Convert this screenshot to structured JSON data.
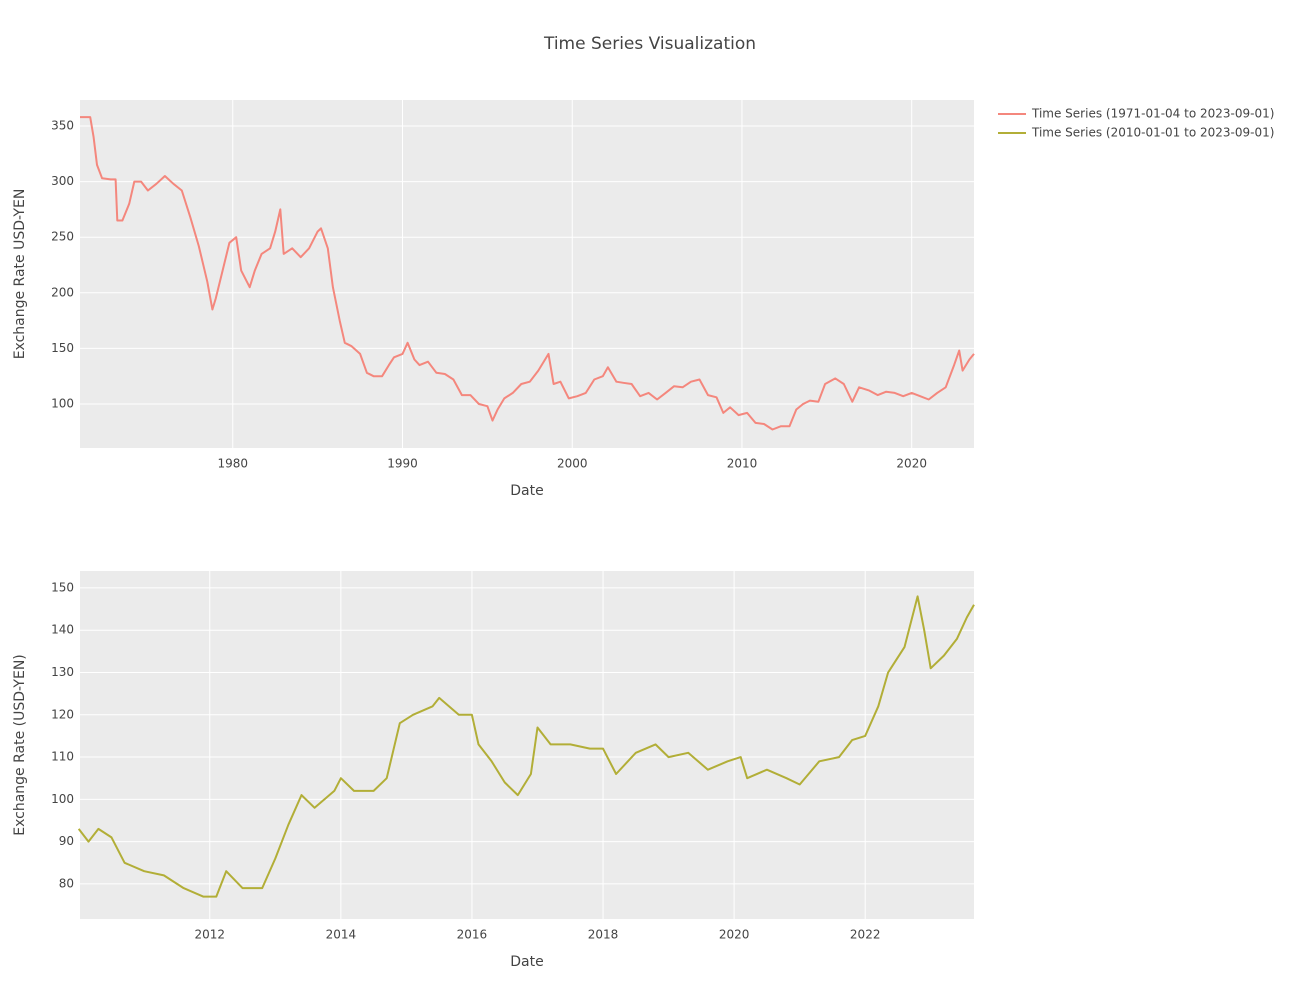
{
  "title": "Time Series Visualization",
  "chart_data": [
    {
      "type": "line",
      "xlabel": "Date",
      "ylabel": "Exchange Rate USD-YEN",
      "x": [
        1971.0,
        1971.6,
        1971.8,
        1972.0,
        1972.3,
        1972.8,
        1973.1,
        1973.2,
        1973.5,
        1973.9,
        1974.2,
        1974.6,
        1975.0,
        1975.5,
        1976.0,
        1976.5,
        1977.0,
        1977.5,
        1978.0,
        1978.5,
        1978.8,
        1979.0,
        1979.4,
        1979.8,
        1980.2,
        1980.5,
        1981.0,
        1981.3,
        1981.7,
        1982.2,
        1982.5,
        1982.8,
        1983.0,
        1983.5,
        1984.0,
        1984.5,
        1985.0,
        1985.2,
        1985.6,
        1985.9,
        1986.3,
        1986.6,
        1987.0,
        1987.5,
        1987.9,
        1988.3,
        1988.8,
        1989.2,
        1989.5,
        1990.0,
        1990.3,
        1990.7,
        1991.0,
        1991.5,
        1992.0,
        1992.5,
        1993.0,
        1993.5,
        1994.0,
        1994.5,
        1995.0,
        1995.3,
        1995.6,
        1996.0,
        1996.5,
        1997.0,
        1997.5,
        1998.0,
        1998.6,
        1998.9,
        1999.3,
        1999.8,
        2000.3,
        2000.8,
        2001.3,
        2001.8,
        2002.1,
        2002.6,
        2003.0,
        2003.5,
        2004.0,
        2004.5,
        2005.0,
        2005.5,
        2006.0,
        2006.5,
        2007.0,
        2007.5,
        2008.0,
        2008.5,
        2008.9,
        2009.3,
        2009.8,
        2010.3,
        2010.8,
        2011.3,
        2011.8,
        2012.3,
        2012.8,
        2013.2,
        2013.6,
        2014.0,
        2014.5,
        2014.9,
        2015.5,
        2016.0,
        2016.5,
        2016.9,
        2017.5,
        2018.0,
        2018.5,
        2019.0,
        2019.5,
        2020.0,
        2020.5,
        2021.0,
        2021.5,
        2022.0,
        2022.5,
        2022.8,
        2023.0,
        2023.4,
        2023.67
      ],
      "series": [
        {
          "name": "Time Series (1971-01-04 to 2023-09-01)",
          "color": "#f4877d",
          "values": [
            358,
            358,
            340,
            315,
            303,
            302,
            302,
            265,
            265,
            280,
            300,
            300,
            292,
            298,
            305,
            298,
            292,
            268,
            242,
            210,
            185,
            195,
            220,
            245,
            250,
            220,
            205,
            220,
            235,
            240,
            255,
            275,
            235,
            240,
            232,
            240,
            255,
            258,
            240,
            205,
            175,
            155,
            152,
            145,
            128,
            125,
            125,
            135,
            142,
            145,
            155,
            140,
            135,
            138,
            128,
            127,
            122,
            108,
            108,
            100,
            98,
            85,
            95,
            105,
            110,
            118,
            120,
            130,
            145,
            118,
            120,
            105,
            107,
            110,
            122,
            125,
            133,
            120,
            119,
            118,
            107,
            110,
            104,
            110,
            116,
            115,
            120,
            122,
            108,
            106,
            92,
            97,
            90,
            92,
            83,
            82,
            77,
            80,
            80,
            95,
            100,
            103,
            102,
            118,
            123,
            118,
            102,
            115,
            112,
            108,
            111,
            110,
            107,
            110,
            107,
            104,
            110,
            115,
            135,
            148,
            130,
            140,
            145
          ]
        }
      ],
      "xlim": [
        1971.0,
        2023.67
      ],
      "xticks": [
        1980,
        1990,
        2000,
        2010,
        2020
      ],
      "ylim": [
        60.4,
        373.4
      ],
      "yticks": [
        100,
        150,
        200,
        250,
        300,
        350
      ],
      "grid": true,
      "legend": "right"
    },
    {
      "type": "line",
      "xlabel": "Date",
      "ylabel": "Exchange Rate (USD-YEN)",
      "x": [
        2010.0,
        2010.15,
        2010.3,
        2010.5,
        2010.7,
        2011.0,
        2011.3,
        2011.6,
        2011.9,
        2012.1,
        2012.25,
        2012.5,
        2012.8,
        2013.0,
        2013.2,
        2013.4,
        2013.6,
        2013.9,
        2014.0,
        2014.2,
        2014.5,
        2014.7,
        2014.9,
        2015.1,
        2015.4,
        2015.5,
        2015.8,
        2016.0,
        2016.1,
        2016.3,
        2016.5,
        2016.7,
        2016.9,
        2017.0,
        2017.2,
        2017.5,
        2017.8,
        2018.0,
        2018.2,
        2018.5,
        2018.8,
        2019.0,
        2019.3,
        2019.6,
        2019.9,
        2020.1,
        2020.2,
        2020.5,
        2020.8,
        2021.0,
        2021.3,
        2021.6,
        2021.8,
        2022.0,
        2022.2,
        2022.35,
        2022.6,
        2022.8,
        2022.9,
        2023.0,
        2023.2,
        2023.4,
        2023.55,
        2023.66
      ],
      "series": [
        {
          "name": "Time Series (2010-01-01 to 2023-09-01)",
          "color": "#b2ae37",
          "values": [
            93,
            90,
            93,
            91,
            85,
            83,
            82,
            79,
            77,
            77,
            83,
            79,
            79,
            86,
            94,
            101,
            98,
            102,
            105,
            102,
            102,
            105,
            118,
            120,
            122,
            124,
            120,
            120,
            113,
            109,
            104,
            101,
            106,
            117,
            113,
            113,
            112,
            112,
            106,
            111,
            113,
            110,
            111,
            107,
            109,
            110,
            105,
            107,
            105,
            103.5,
            109,
            110,
            114,
            115,
            122,
            130,
            136,
            148,
            140,
            131,
            134,
            138,
            143,
            146
          ]
        }
      ],
      "xlim": [
        2010.02,
        2023.66
      ],
      "xticks": [
        2012,
        2014,
        2016,
        2018,
        2020,
        2022
      ],
      "ylim": [
        71.7,
        154.0
      ],
      "yticks": [
        80,
        90,
        100,
        110,
        120,
        130,
        140,
        150
      ],
      "grid": true,
      "legend": "right"
    }
  ]
}
